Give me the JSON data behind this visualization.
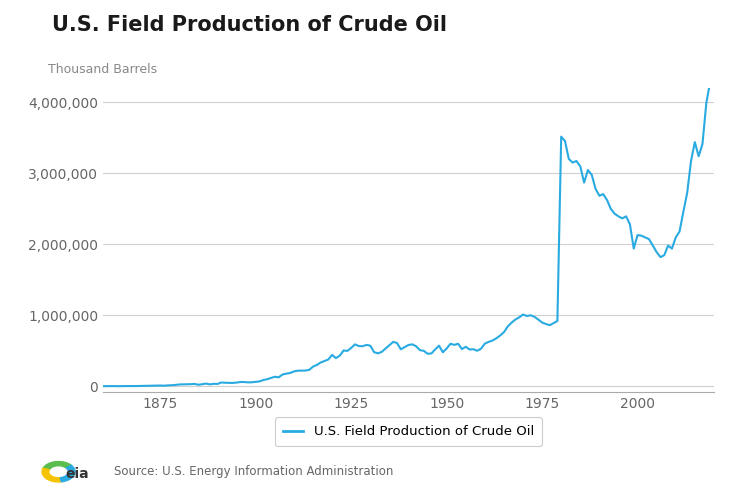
{
  "title": "U.S. Field Production of Crude Oil",
  "ylabel": "Thousand Barrels",
  "legend_label": "U.S. Field Production of Crude Oil",
  "source_text": "Source: U.S. Energy Information Administration",
  "line_color": "#29ABE2",
  "background_color": "#FFFFFF",
  "grid_color": "#D0D0D0",
  "title_fontsize": 15,
  "tick_fontsize": 10,
  "ylim": [
    -80000,
    4200000
  ],
  "yticks": [
    0,
    1000000,
    2000000,
    3000000,
    4000000
  ],
  "xticks": [
    1875,
    1900,
    1925,
    1950,
    1975,
    2000
  ],
  "years": [
    1860,
    1861,
    1862,
    1863,
    1864,
    1865,
    1866,
    1867,
    1868,
    1869,
    1870,
    1871,
    1872,
    1873,
    1874,
    1875,
    1876,
    1877,
    1878,
    1879,
    1880,
    1881,
    1882,
    1883,
    1884,
    1885,
    1886,
    1887,
    1888,
    1889,
    1890,
    1891,
    1892,
    1893,
    1894,
    1895,
    1896,
    1897,
    1898,
    1899,
    1900,
    1901,
    1902,
    1903,
    1904,
    1905,
    1906,
    1907,
    1908,
    1909,
    1910,
    1911,
    1912,
    1913,
    1914,
    1915,
    1916,
    1917,
    1918,
    1919,
    1920,
    1921,
    1922,
    1923,
    1924,
    1925,
    1926,
    1927,
    1928,
    1929,
    1930,
    1931,
    1932,
    1933,
    1934,
    1935,
    1936,
    1937,
    1938,
    1939,
    1940,
    1941,
    1942,
    1943,
    1944,
    1945,
    1946,
    1947,
    1948,
    1949,
    1950,
    1951,
    1952,
    1953,
    1954,
    1955,
    1956,
    1957,
    1958,
    1959,
    1960,
    1961,
    1962,
    1963,
    1964,
    1965,
    1966,
    1967,
    1968,
    1969,
    1970,
    1971,
    1972,
    1973,
    1974,
    1975,
    1976,
    1977,
    1978,
    1979,
    1980,
    1981,
    1982,
    1983,
    1984,
    1985,
    1986,
    1987,
    1988,
    1989,
    1990,
    1991,
    1992,
    1993,
    1994,
    1995,
    1996,
    1997,
    1998,
    1999,
    2000,
    2001,
    2002,
    2003,
    2004,
    2005,
    2006,
    2007,
    2008,
    2009,
    2010,
    2011,
    2012,
    2013,
    2014,
    2015,
    2016,
    2017,
    2018,
    2019
  ],
  "values": [
    2114,
    3057,
    3465,
    2611,
    2116,
    3237,
    3597,
    3347,
    3500,
    4215,
    5261,
    5205,
    6293,
    9894,
    10926,
    11245,
    9135,
    13350,
    15397,
    19914,
    26286,
    27661,
    30350,
    30418,
    33938,
    21583,
    30161,
    38774,
    27612,
    35163,
    33776,
    54293,
    50515,
    48431,
    47969,
    52895,
    60960,
    60476,
    55364,
    57071,
    63621,
    69389,
    88767,
    100461,
    117081,
    134717,
    126493,
    166095,
    178527,
    188071,
    209557,
    220449,
    221000,
    222000,
    231769,
    277360,
    300767,
    335316,
    355928,
    377987,
    442929,
    397388,
    431891,
    505093,
    498600,
    541731,
    590959,
    567253,
    564745,
    583669,
    572522,
    481003,
    464807,
    485521,
    533152,
    579353,
    626455,
    609925,
    521403,
    551893,
    582705,
    591288,
    564506,
    509321,
    499900,
    458960,
    462428,
    520378,
    573419,
    479505,
    533282,
    599565,
    584050,
    599600,
    525668,
    556897,
    519024,
    522985,
    500895,
    530000,
    601987,
    626247,
    644978,
    676017,
    715432,
    762697,
    843387,
    897263,
    940914,
    971768,
    1011521,
    990567,
    1000978,
    979520,
    940438,
    899073,
    877527,
    861220,
    889756,
    919766,
    3517450,
    3454240,
    3202590,
    3152490,
    3174250,
    3099660,
    2870260,
    3047380,
    2979010,
    2781540,
    2684530,
    2707240,
    2624630,
    2499390,
    2431660,
    2394240,
    2366010,
    2395000,
    2281920,
    1940338,
    2130707,
    2122530,
    2097230,
    2073450,
    1983302,
    1890106,
    1819897,
    1848450,
    1983000,
    1940338,
    2097230,
    2181810,
    2459920,
    2726890,
    3173490,
    3441070,
    3241060,
    3413350,
    3986960,
    4285170
  ]
}
